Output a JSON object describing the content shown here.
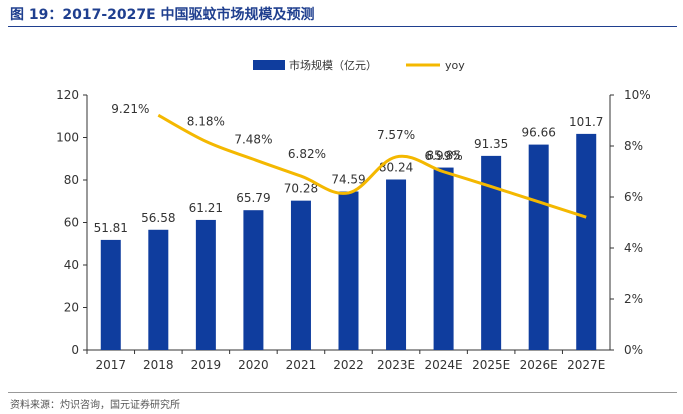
{
  "figure_title": "图 19：2017-2027E 中国驱蚊市场规模及预测",
  "source": "资料来源：灼识咨询，国元证券研究所",
  "colors": {
    "bar": "#0f3d9e",
    "line": "#f4b800",
    "title": "#1f3f8f"
  },
  "chart_data": {
    "type": "bar",
    "title": "",
    "xlabel": "",
    "ylabel": "",
    "categories": [
      "2017",
      "2018",
      "2019",
      "2020",
      "2021",
      "2022",
      "2023E",
      "2024E",
      "2025E",
      "2026E",
      "2027E"
    ],
    "series": [
      {
        "name": "市场规模（亿元）",
        "type": "bar",
        "axis": "left",
        "values": [
          51.81,
          56.58,
          61.21,
          65.79,
          70.28,
          74.59,
          80.24,
          85.85,
          91.35,
          96.66,
          101.7
        ]
      },
      {
        "name": "yoy",
        "type": "line",
        "axis": "right",
        "values": [
          null,
          9.21,
          8.18,
          7.48,
          6.82,
          6.16,
          7.57,
          6.99,
          6.41,
          5.81,
          5.21
        ]
      }
    ],
    "bar_labels": [
      "51.81",
      "56.58",
      "61.21",
      "65.79",
      "70.28",
      "74.59",
      "80.24",
      "85.85",
      "91.35",
      "96.66",
      "101.7"
    ],
    "yoy_labels": [
      "",
      "9.21%",
      "8.18%",
      "7.48%",
      "6.82%",
      "",
      "7.57%",
      "6.99%",
      "",
      "",
      ""
    ],
    "ylim_left": [
      0,
      120
    ],
    "yticks_left": [
      "0",
      "20",
      "40",
      "60",
      "80",
      "100",
      "120"
    ],
    "ylim_right": [
      0,
      10
    ],
    "yticks_right": [
      "0%",
      "2%",
      "4%",
      "6%",
      "8%",
      "10%"
    ],
    "grid": false,
    "legend_position": "top-center"
  }
}
